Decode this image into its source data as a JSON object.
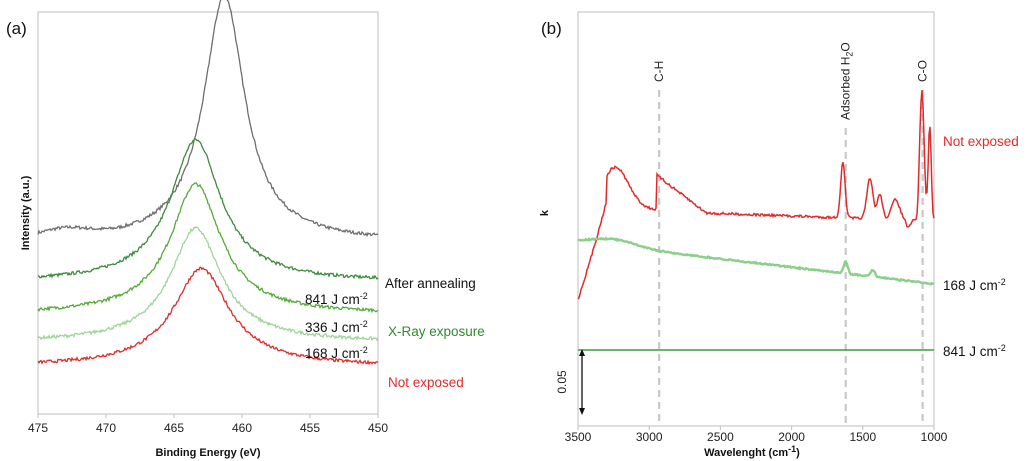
{
  "chart_data": [
    {
      "panel_label": "(a)",
      "type": "line",
      "xlabel": "Binding Energy (eV)",
      "ylabel": "Intensity (a.u.)",
      "xlim": [
        475,
        450
      ],
      "x_reversed": true,
      "x_ticks": [
        "475",
        "470",
        "465",
        "460",
        "455",
        "450"
      ],
      "grid": false,
      "series": [
        {
          "key": "annealed",
          "color": "#6e6e6e",
          "peak": 461.3,
          "baseline": 0.43,
          "height": 0.6,
          "width": 1.8,
          "shoulder": {
            "center": 473,
            "height": 0.02,
            "width": 2.5
          }
        },
        {
          "key": "841",
          "color": "#3e8a3e",
          "peak": 463.4,
          "baseline": 0.33,
          "height": 0.34,
          "width": 2.2
        },
        {
          "key": "336",
          "color": "#55aa3a",
          "peak": 463.4,
          "baseline": 0.25,
          "height": 0.31,
          "width": 2.2
        },
        {
          "key": "168",
          "color": "#9fd49a",
          "peak": 463.4,
          "baseline": 0.18,
          "height": 0.27,
          "width": 2.2
        },
        {
          "key": "not_exposed",
          "color": "#e02b2b",
          "peak": 463.0,
          "baseline": 0.12,
          "height": 0.23,
          "width": 2.4
        }
      ],
      "labels": [
        {
          "text": "After annealing",
          "sup": "",
          "color": "#111111"
        },
        {
          "text": "841 J cm",
          "sup": "-2",
          "color": "#111111"
        },
        {
          "text": "336 J cm",
          "sup": "-2",
          "color": "#111111"
        },
        {
          "text": "X-Ray exposure",
          "sup": "",
          "color": "#2e8b2e"
        },
        {
          "text": "168 J cm",
          "sup": "-2",
          "color": "#111111"
        },
        {
          "text": "Not exposed",
          "sup": "",
          "color": "#e02b2b"
        }
      ]
    },
    {
      "panel_label": "(b)",
      "type": "line",
      "xlabel": "Wavelenght (cm-1)",
      "ylabel": "k",
      "xlim": [
        3500,
        1000
      ],
      "x_reversed": true,
      "x_ticks": [
        "3500",
        "3000",
        "2500",
        "2000",
        "1500",
        "1000"
      ],
      "scale_bar_label": "0.05",
      "grid": false,
      "reference_lines": [
        {
          "x": 2930,
          "label": "C-H",
          "sub": ""
        },
        {
          "x": 1620,
          "label": "Adsorbed H",
          "sub": "2",
          "tail": "O"
        },
        {
          "x": 1080,
          "label": "C-O",
          "sub": ""
        }
      ],
      "series": [
        {
          "key": "not_exposed",
          "color": "#e02b2b"
        },
        {
          "key": "168",
          "color": "#8ccf8a"
        },
        {
          "key": "841",
          "color": "#3e9a3e"
        }
      ],
      "labels": [
        {
          "text": "Not exposed",
          "sup": "",
          "color": "#e02b2b"
        },
        {
          "text": "168 J cm",
          "sup": "-2",
          "color": "#111111"
        },
        {
          "text": "841 J cm",
          "sup": "-2",
          "color": "#111111"
        }
      ]
    }
  ]
}
